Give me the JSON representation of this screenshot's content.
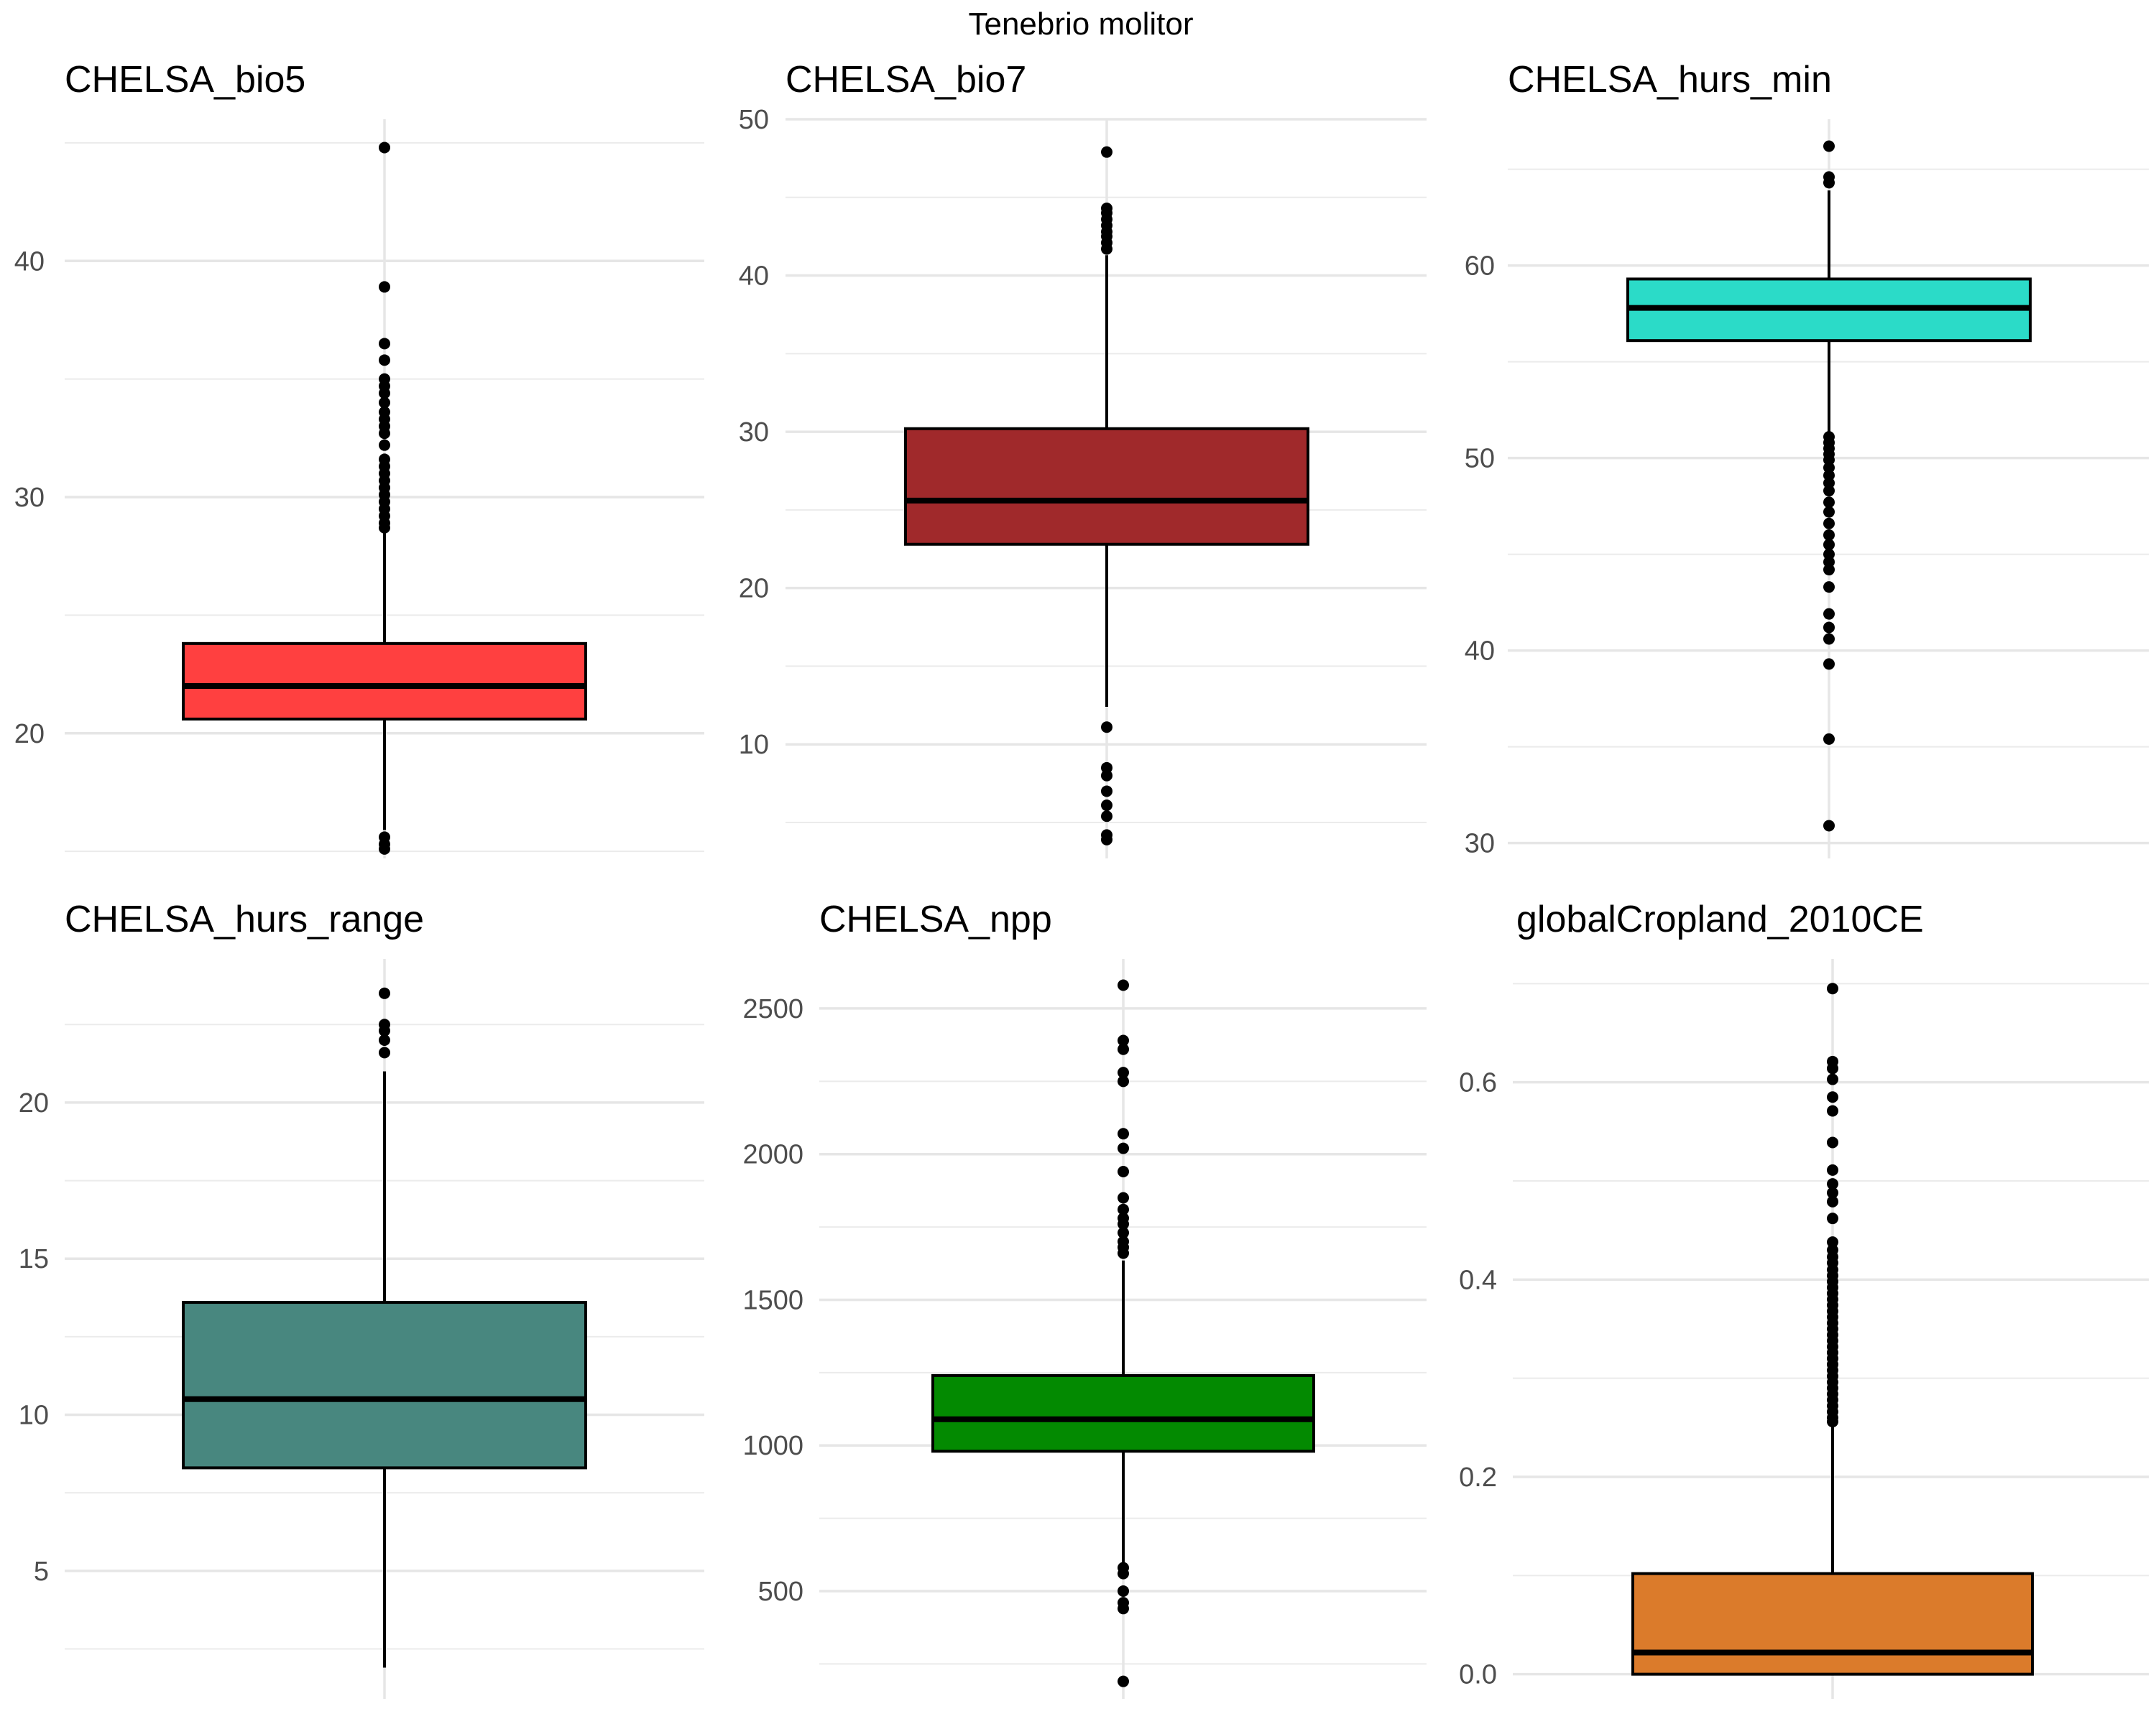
{
  "title": "Tenebrio molitor",
  "chart_data": [
    {
      "type": "box",
      "title": "CHELSA_bio5",
      "fill": "#FF4040",
      "ylim": [
        14.7,
        46
      ],
      "ticks": [
        20,
        30,
        40
      ],
      "tick_labels": [
        "20",
        "30",
        "40"
      ],
      "minor_ticks": [
        15,
        25,
        35,
        45
      ],
      "q1": 20.6,
      "median": 22.0,
      "q3": 23.8,
      "whisker_low": 15.9,
      "whisker_high": 28.6,
      "outliers": [
        44.8,
        38.9,
        36.5,
        35.8,
        35.0,
        34.7,
        34.4,
        34.0,
        33.6,
        33.3,
        33.0,
        32.7,
        32.2,
        31.6,
        31.3,
        31.0,
        30.7,
        30.4,
        30.1,
        29.8,
        29.5,
        29.2,
        28.9,
        28.7,
        15.6,
        15.3,
        15.1
      ]
    },
    {
      "type": "box",
      "title": "CHELSA_bio7",
      "fill": "#A0292B",
      "ylim": [
        2.7,
        50
      ],
      "ticks": [
        10,
        20,
        30,
        40,
        50
      ],
      "tick_labels": [
        "10",
        "20",
        "30",
        "40",
        "50"
      ],
      "minor_ticks": [
        5,
        15,
        25,
        35,
        45
      ],
      "q1": 22.8,
      "median": 25.6,
      "q3": 30.2,
      "whisker_low": 12.4,
      "whisker_high": 41.3,
      "outliers": [
        47.9,
        44.3,
        44.0,
        43.6,
        43.2,
        42.8,
        42.5,
        42.1,
        41.7,
        11.1,
        8.5,
        8.0,
        7.0,
        6.1,
        5.4,
        4.2,
        3.9
      ]
    },
    {
      "type": "box",
      "title": "CHELSA_hurs_min",
      "fill": "#2BDBC8",
      "ylim": [
        29.2,
        67.6
      ],
      "ticks": [
        30,
        40,
        50,
        60
      ],
      "tick_labels": [
        "30",
        "40",
        "50",
        "60"
      ],
      "minor_ticks": [
        35,
        45,
        55,
        65
      ],
      "q1": 56.1,
      "median": 57.8,
      "q3": 59.3,
      "whisker_low": 51.3,
      "whisker_high": 63.9,
      "outliers": [
        66.2,
        64.6,
        64.3,
        51.1,
        50.8,
        50.5,
        50.2,
        49.9,
        49.5,
        49.1,
        48.7,
        48.3,
        47.7,
        47.2,
        46.6,
        46.0,
        45.5,
        45.0,
        44.6,
        44.2,
        43.3,
        41.9,
        41.2,
        40.6,
        39.3,
        35.4,
        30.9
      ]
    },
    {
      "type": "box",
      "title": "CHELSA_hurs_range",
      "fill": "#48877F",
      "ylim": [
        0.9,
        24.6
      ],
      "ticks": [
        5,
        10,
        15,
        20
      ],
      "tick_labels": [
        "5",
        "10",
        "15",
        "20"
      ],
      "minor_ticks": [
        2.5,
        7.5,
        12.5,
        17.5,
        22.5
      ],
      "q1": 8.3,
      "median": 10.5,
      "q3": 13.6,
      "whisker_low": 1.9,
      "whisker_high": 21.0,
      "outliers": [
        23.5,
        22.5,
        22.3,
        22.0,
        21.6
      ]
    },
    {
      "type": "box",
      "title": "CHELSA_npp",
      "fill": "#038A01",
      "ylim": [
        130,
        2670
      ],
      "ticks": [
        500,
        1000,
        1500,
        2000,
        2500
      ],
      "tick_labels": [
        "500",
        "1000",
        "1500",
        "2000",
        "2500"
      ],
      "minor_ticks": [
        250,
        750,
        1250,
        1750,
        2250
      ],
      "q1": 980,
      "median": 1090,
      "q3": 1240,
      "whisker_low": 595,
      "whisker_high": 1635,
      "outliers": [
        2580,
        2390,
        2360,
        2280,
        2250,
        2070,
        2020,
        1940,
        1850,
        1810,
        1780,
        1760,
        1730,
        1700,
        1680,
        1660,
        580,
        560,
        500,
        460,
        440,
        190
      ]
    },
    {
      "type": "box",
      "title": "globalCropland_2010CE",
      "fill": "#DB7B2B",
      "ylim": [
        -0.025,
        0.725
      ],
      "ticks": [
        0.0,
        0.2,
        0.4,
        0.6
      ],
      "tick_labels": [
        "0.0",
        "0.2",
        "0.4",
        "0.6"
      ],
      "minor_ticks": [
        0.1,
        0.3,
        0.5,
        0.7
      ],
      "q1": 0.0,
      "median": 0.022,
      "q3": 0.102,
      "whisker_low": 0.0,
      "whisker_high": 0.253,
      "outliers": [
        0.695,
        0.621,
        0.614,
        0.603,
        0.585,
        0.571,
        0.539,
        0.511,
        0.497,
        0.488,
        0.479,
        0.462,
        0.438,
        0.43,
        0.423,
        0.417,
        0.41,
        0.404,
        0.398,
        0.392,
        0.386,
        0.38,
        0.374,
        0.368,
        0.362,
        0.356,
        0.35,
        0.344,
        0.338,
        0.332,
        0.326,
        0.32,
        0.314,
        0.308,
        0.302,
        0.296,
        0.29,
        0.284,
        0.278,
        0.272,
        0.266,
        0.26,
        0.256
      ]
    }
  ]
}
